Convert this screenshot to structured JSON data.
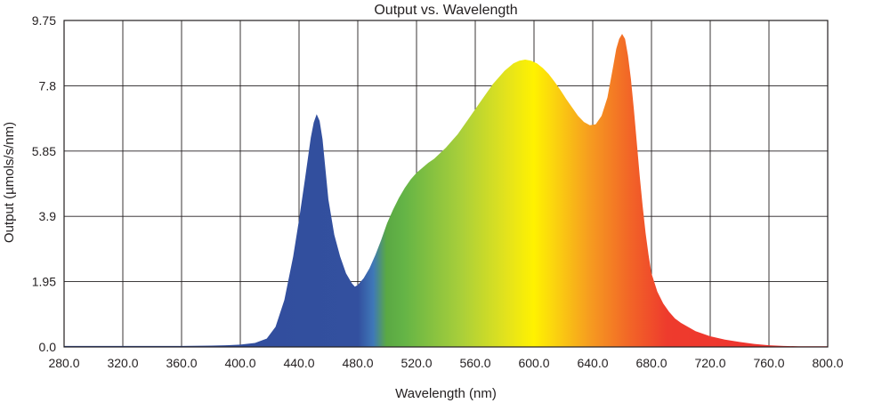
{
  "chart_data": {
    "type": "area",
    "title": "Output vs. Wavelength",
    "xlabel": "Wavelength (nm)",
    "ylabel": "Output (µmols/s/nm)",
    "xlim": [
      280,
      800
    ],
    "ylim": [
      0,
      9.75
    ],
    "x_ticks": [
      "280.0",
      "320.0",
      "360.0",
      "400.0",
      "440.0",
      "480.0",
      "520.0",
      "560.0",
      "600.0",
      "640.0",
      "680.0",
      "720.0",
      "760.0",
      "800.0"
    ],
    "y_ticks": [
      "0.0",
      "1.95",
      "3.9",
      "5.85",
      "7.8",
      "9.75"
    ],
    "grid": true,
    "legend": "none",
    "fill": "spectral-gradient",
    "series": [
      {
        "x": [
          280,
          300,
          320,
          340,
          360,
          380,
          390,
          400,
          410,
          418,
          424,
          430,
          436,
          440,
          444,
          448,
          450,
          452,
          454,
          456,
          458,
          460,
          464,
          468,
          472,
          476,
          478,
          480,
          484,
          488,
          492,
          496,
          500,
          504,
          508,
          512,
          516,
          520,
          524,
          528,
          532,
          540,
          548,
          556,
          564,
          572,
          580,
          586,
          590,
          594,
          598,
          602,
          606,
          610,
          614,
          618,
          622,
          626,
          630,
          634,
          638,
          642,
          646,
          650,
          654,
          656,
          658,
          660,
          662,
          664,
          666,
          668,
          670,
          672,
          674,
          676,
          678,
          680,
          684,
          688,
          692,
          696,
          700,
          710,
          720,
          730,
          740,
          750,
          760,
          770,
          780,
          790,
          800
        ],
        "y": [
          0.03,
          0.03,
          0.03,
          0.03,
          0.03,
          0.04,
          0.05,
          0.07,
          0.12,
          0.25,
          0.6,
          1.4,
          2.7,
          3.8,
          5.0,
          6.25,
          6.7,
          6.95,
          6.75,
          6.2,
          5.3,
          4.4,
          3.35,
          2.7,
          2.2,
          1.9,
          1.8,
          1.85,
          2.05,
          2.35,
          2.75,
          3.2,
          3.7,
          4.1,
          4.45,
          4.75,
          5.0,
          5.2,
          5.35,
          5.5,
          5.62,
          5.95,
          6.35,
          6.85,
          7.35,
          7.85,
          8.25,
          8.47,
          8.55,
          8.58,
          8.55,
          8.47,
          8.33,
          8.15,
          7.92,
          7.67,
          7.4,
          7.15,
          6.9,
          6.72,
          6.62,
          6.65,
          6.9,
          7.45,
          8.4,
          8.9,
          9.2,
          9.35,
          9.2,
          8.7,
          8.0,
          7.1,
          6.1,
          5.1,
          4.2,
          3.4,
          2.75,
          2.2,
          1.65,
          1.3,
          1.05,
          0.85,
          0.72,
          0.47,
          0.32,
          0.22,
          0.15,
          0.09,
          0.05,
          0.03,
          0.02,
          0.02,
          0.02
        ]
      }
    ]
  }
}
